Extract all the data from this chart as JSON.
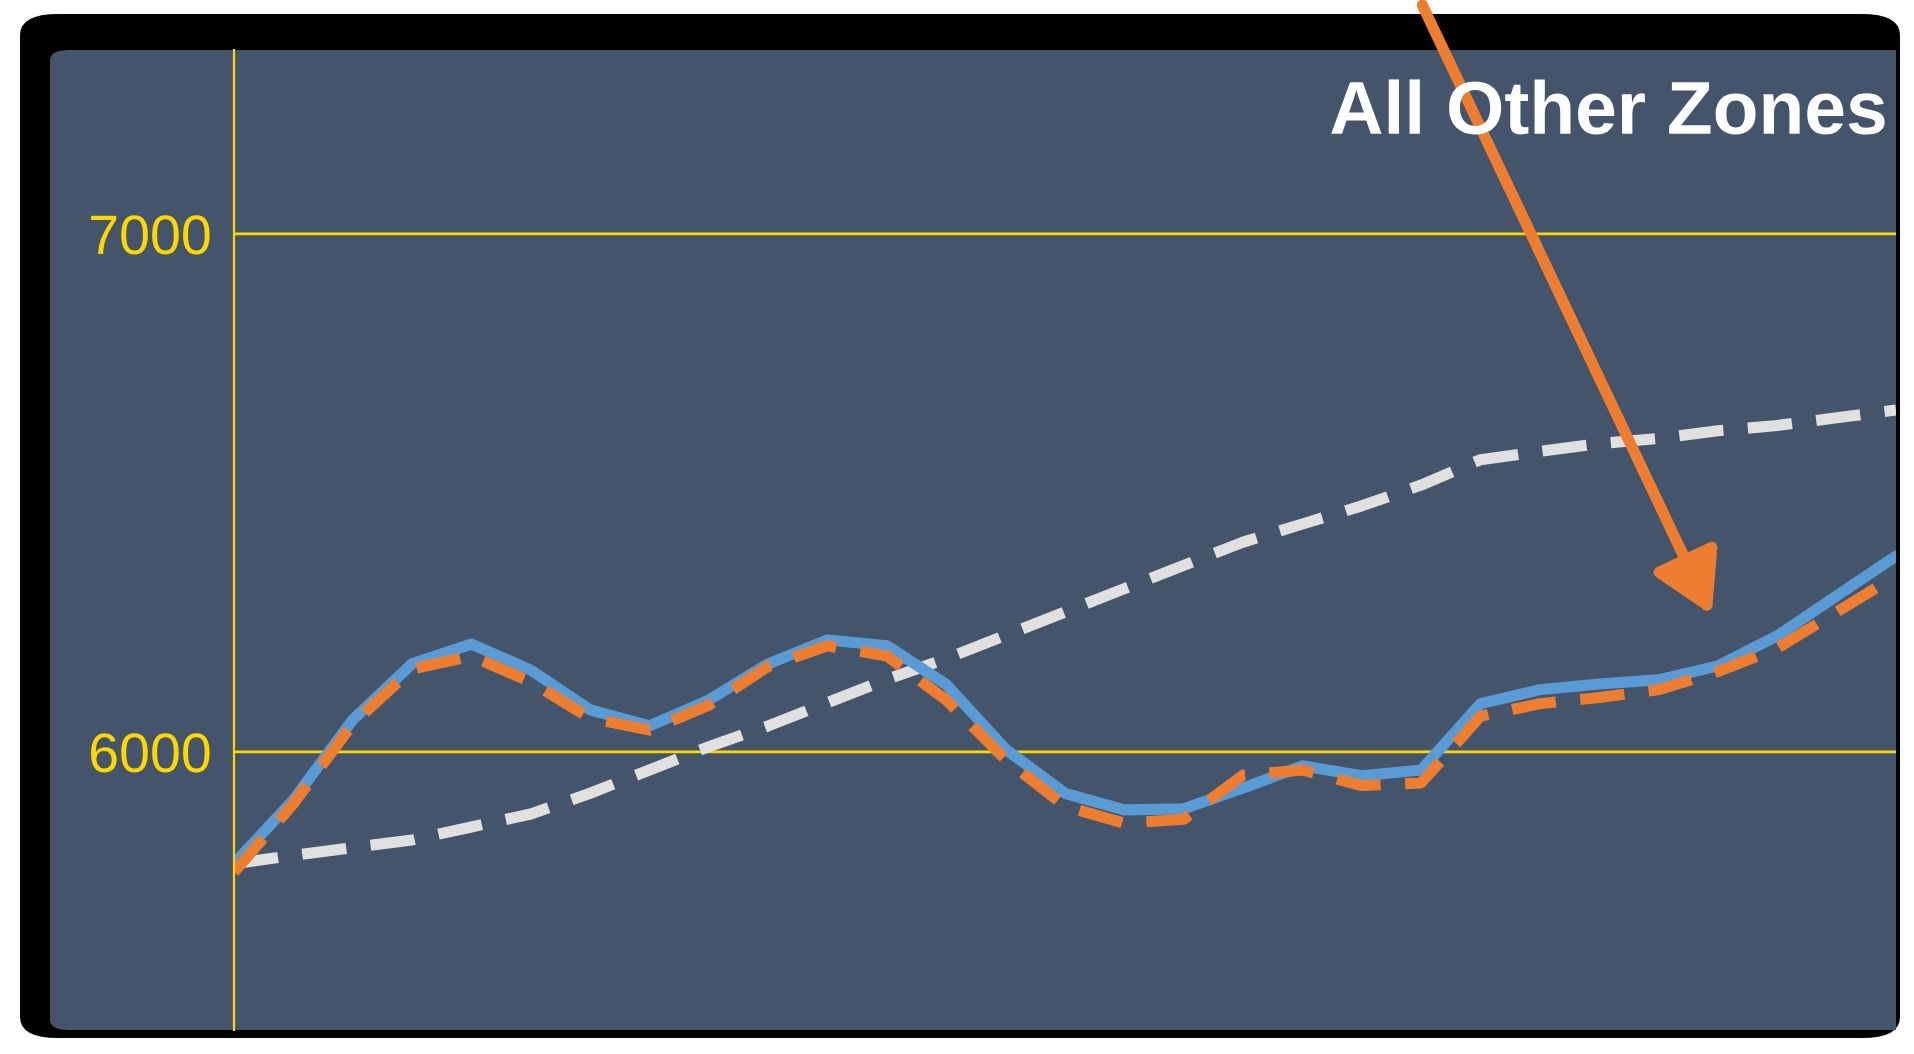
{
  "chart_data": {
    "type": "line",
    "title": "All Other Zones",
    "categories": [
      null,
      null,
      null,
      null,
      null,
      null,
      null,
      null,
      null,
      null,
      null,
      null,
      null,
      null,
      null,
      null,
      null,
      null,
      null,
      null,
      null,
      null,
      null,
      null,
      null,
      null,
      null,
      null,
      null
    ],
    "series": [
      {
        "color": "#e0e0e0",
        "line_style": "dashed",
        "values": [
          5784,
          5800,
          5815,
          5830,
          5855,
          5880,
          5920,
          5965,
          6010,
          6050,
          6095,
          6140,
          6180,
          6225,
          6270,
          6315,
          6360,
          6405,
          6440,
          6475,
          6515,
          6564,
          6580,
          6595,
          6605,
          6620,
          6630,
          6645,
          6660
        ]
      },
      {
        "color": "#5b9bd5",
        "line_style": "solid",
        "values": [
          5784,
          5907,
          6062,
          6170,
          6208,
          6158,
          6081,
          6050,
          6100,
          6170,
          6216,
          6205,
          6130,
          6005,
          5920,
          5888,
          5890,
          5930,
          5973,
          5954,
          5965,
          6093,
          6120,
          6131,
          6139,
          6166,
          6224,
          6301,
          6378
        ]
      },
      {
        "color": "#ed7d31",
        "line_style": "dashed",
        "values": [
          5768,
          5900,
          6054,
          6160,
          6185,
          6135,
          6065,
          6042,
          6090,
          6165,
          6205,
          6185,
          6100,
          5985,
          5895,
          5862,
          5870,
          5955,
          5965,
          5935,
          5940,
          6069,
          6093,
          6105,
          6120,
          6155,
          6200,
          6270,
          6340
        ]
      }
    ],
    "ylim": [
      5463,
      7355
    ],
    "yticks": [
      6000,
      7000
    ],
    "grid": "y",
    "tick_labels": "y",
    "marker": "none"
  }
}
